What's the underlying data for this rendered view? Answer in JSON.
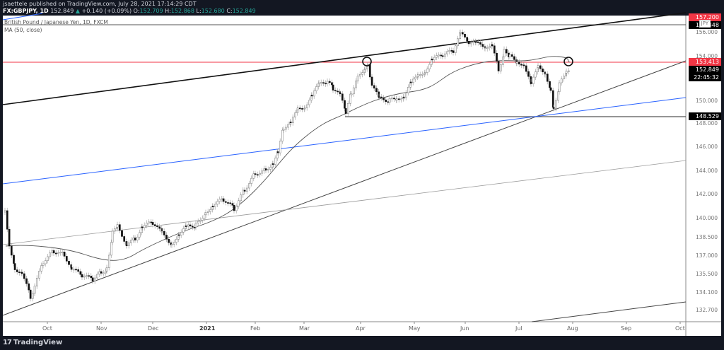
{
  "header": {
    "publisher_line": "jsaettele published on TradingView.com, July 28, 2021 17:14:29 CDT",
    "symbol": "FX:GBPJPY, 1D",
    "last": "152.849",
    "change": "+0.140 (+0.09%)",
    "o_label": "O:",
    "o": "152.709",
    "h_label": "H:",
    "h": "152.868",
    "l_label": "L:",
    "l": "152.680",
    "c_label": "C:",
    "c": "152.849"
  },
  "legend": {
    "series": "British Pound / Japanese Yen, 1D, FXCM",
    "indicator": "MA (50, close)"
  },
  "price_labels": {
    "top_red": "157.200",
    "level_156": "156.448",
    "currency": "JPY",
    "resistance": "153.413",
    "last_price": "152.849",
    "countdown": "22:45:32",
    "support": "148.529"
  },
  "footer": {
    "brand": "TradingView"
  },
  "colors": {
    "background": "#131722",
    "resistance_line": "#f23645",
    "blue_line": "#2962ff",
    "up_value": "#26a69a"
  },
  "chart_data": {
    "type": "candlestick",
    "title": "British Pound / Japanese Yen, 1D, FXCM",
    "xlabel": "",
    "ylabel": "JPY",
    "x_ticks": [
      "Oct",
      "Nov",
      "Dec",
      "2021",
      "Feb",
      "Mar",
      "Apr",
      "May",
      "Jun",
      "Jul",
      "Aug",
      "Sep",
      "Oct"
    ],
    "y_ticks": [
      132.7,
      134.1,
      135.5,
      137.0,
      138.5,
      140.0,
      142.0,
      144.0,
      146.0,
      148.0,
      150.0,
      154.0,
      156.0
    ],
    "ylim": [
      132.0,
      157.5
    ],
    "last_close": 152.849,
    "indicators": [
      {
        "name": "MA (50, close)"
      }
    ],
    "horizontal_levels": [
      {
        "value": 153.413,
        "color": "#f23645",
        "label": "resistance"
      },
      {
        "value": 148.529,
        "color": "#555555",
        "label": "support"
      },
      {
        "value": 156.448,
        "color": "#555555"
      }
    ],
    "trendlines": [
      {
        "name": "upper channel",
        "color": "#000000"
      },
      {
        "name": "rising support",
        "color": "#444444"
      },
      {
        "name": "blue trendline",
        "color": "#2962ff"
      },
      {
        "name": "grey trendline",
        "color": "#999999"
      }
    ],
    "key_points": [
      {
        "date": "2020-10",
        "price": 133.5,
        "note": "swing low"
      },
      {
        "date": "2021-04",
        "price": 153.4,
        "note": "circled high at resistance"
      },
      {
        "date": "2021-04",
        "price": 148.5,
        "note": "support low"
      },
      {
        "date": "2021-06",
        "price": 156.0,
        "note": "peak"
      },
      {
        "date": "2021-07",
        "price": 148.5,
        "note": "retest of support"
      },
      {
        "date": "2021-07-28",
        "price": 152.849,
        "note": "current, circled near MA/resistance"
      }
    ]
  }
}
